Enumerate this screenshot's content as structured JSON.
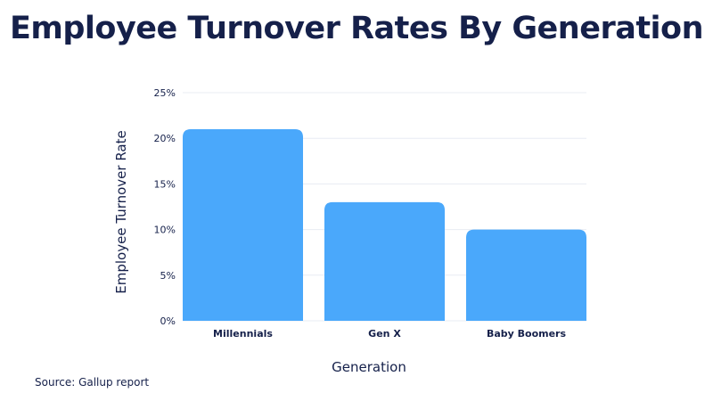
{
  "title": "Employee Turnover Rates By Generation",
  "source": "Source: Gallup report",
  "colors": {
    "bar": "#4aa8fb",
    "text": "#15204a",
    "grid": "#e8ecf3",
    "background": "#ffffff"
  },
  "chart_data": {
    "type": "bar",
    "title": "Employee Turnover Rates By Generation",
    "xlabel": "Generation",
    "ylabel": "Employee Turnover Rate",
    "categories": [
      "Millennials",
      "Gen X",
      "Baby Boomers"
    ],
    "values": [
      21,
      13,
      10
    ],
    "ylim": [
      0,
      25
    ],
    "yticks": [
      0,
      5,
      10,
      15,
      20,
      25
    ],
    "ytick_labels": [
      "0%",
      "5%",
      "10%",
      "15%",
      "20%",
      "25%"
    ],
    "grid": true,
    "legend": "none"
  }
}
